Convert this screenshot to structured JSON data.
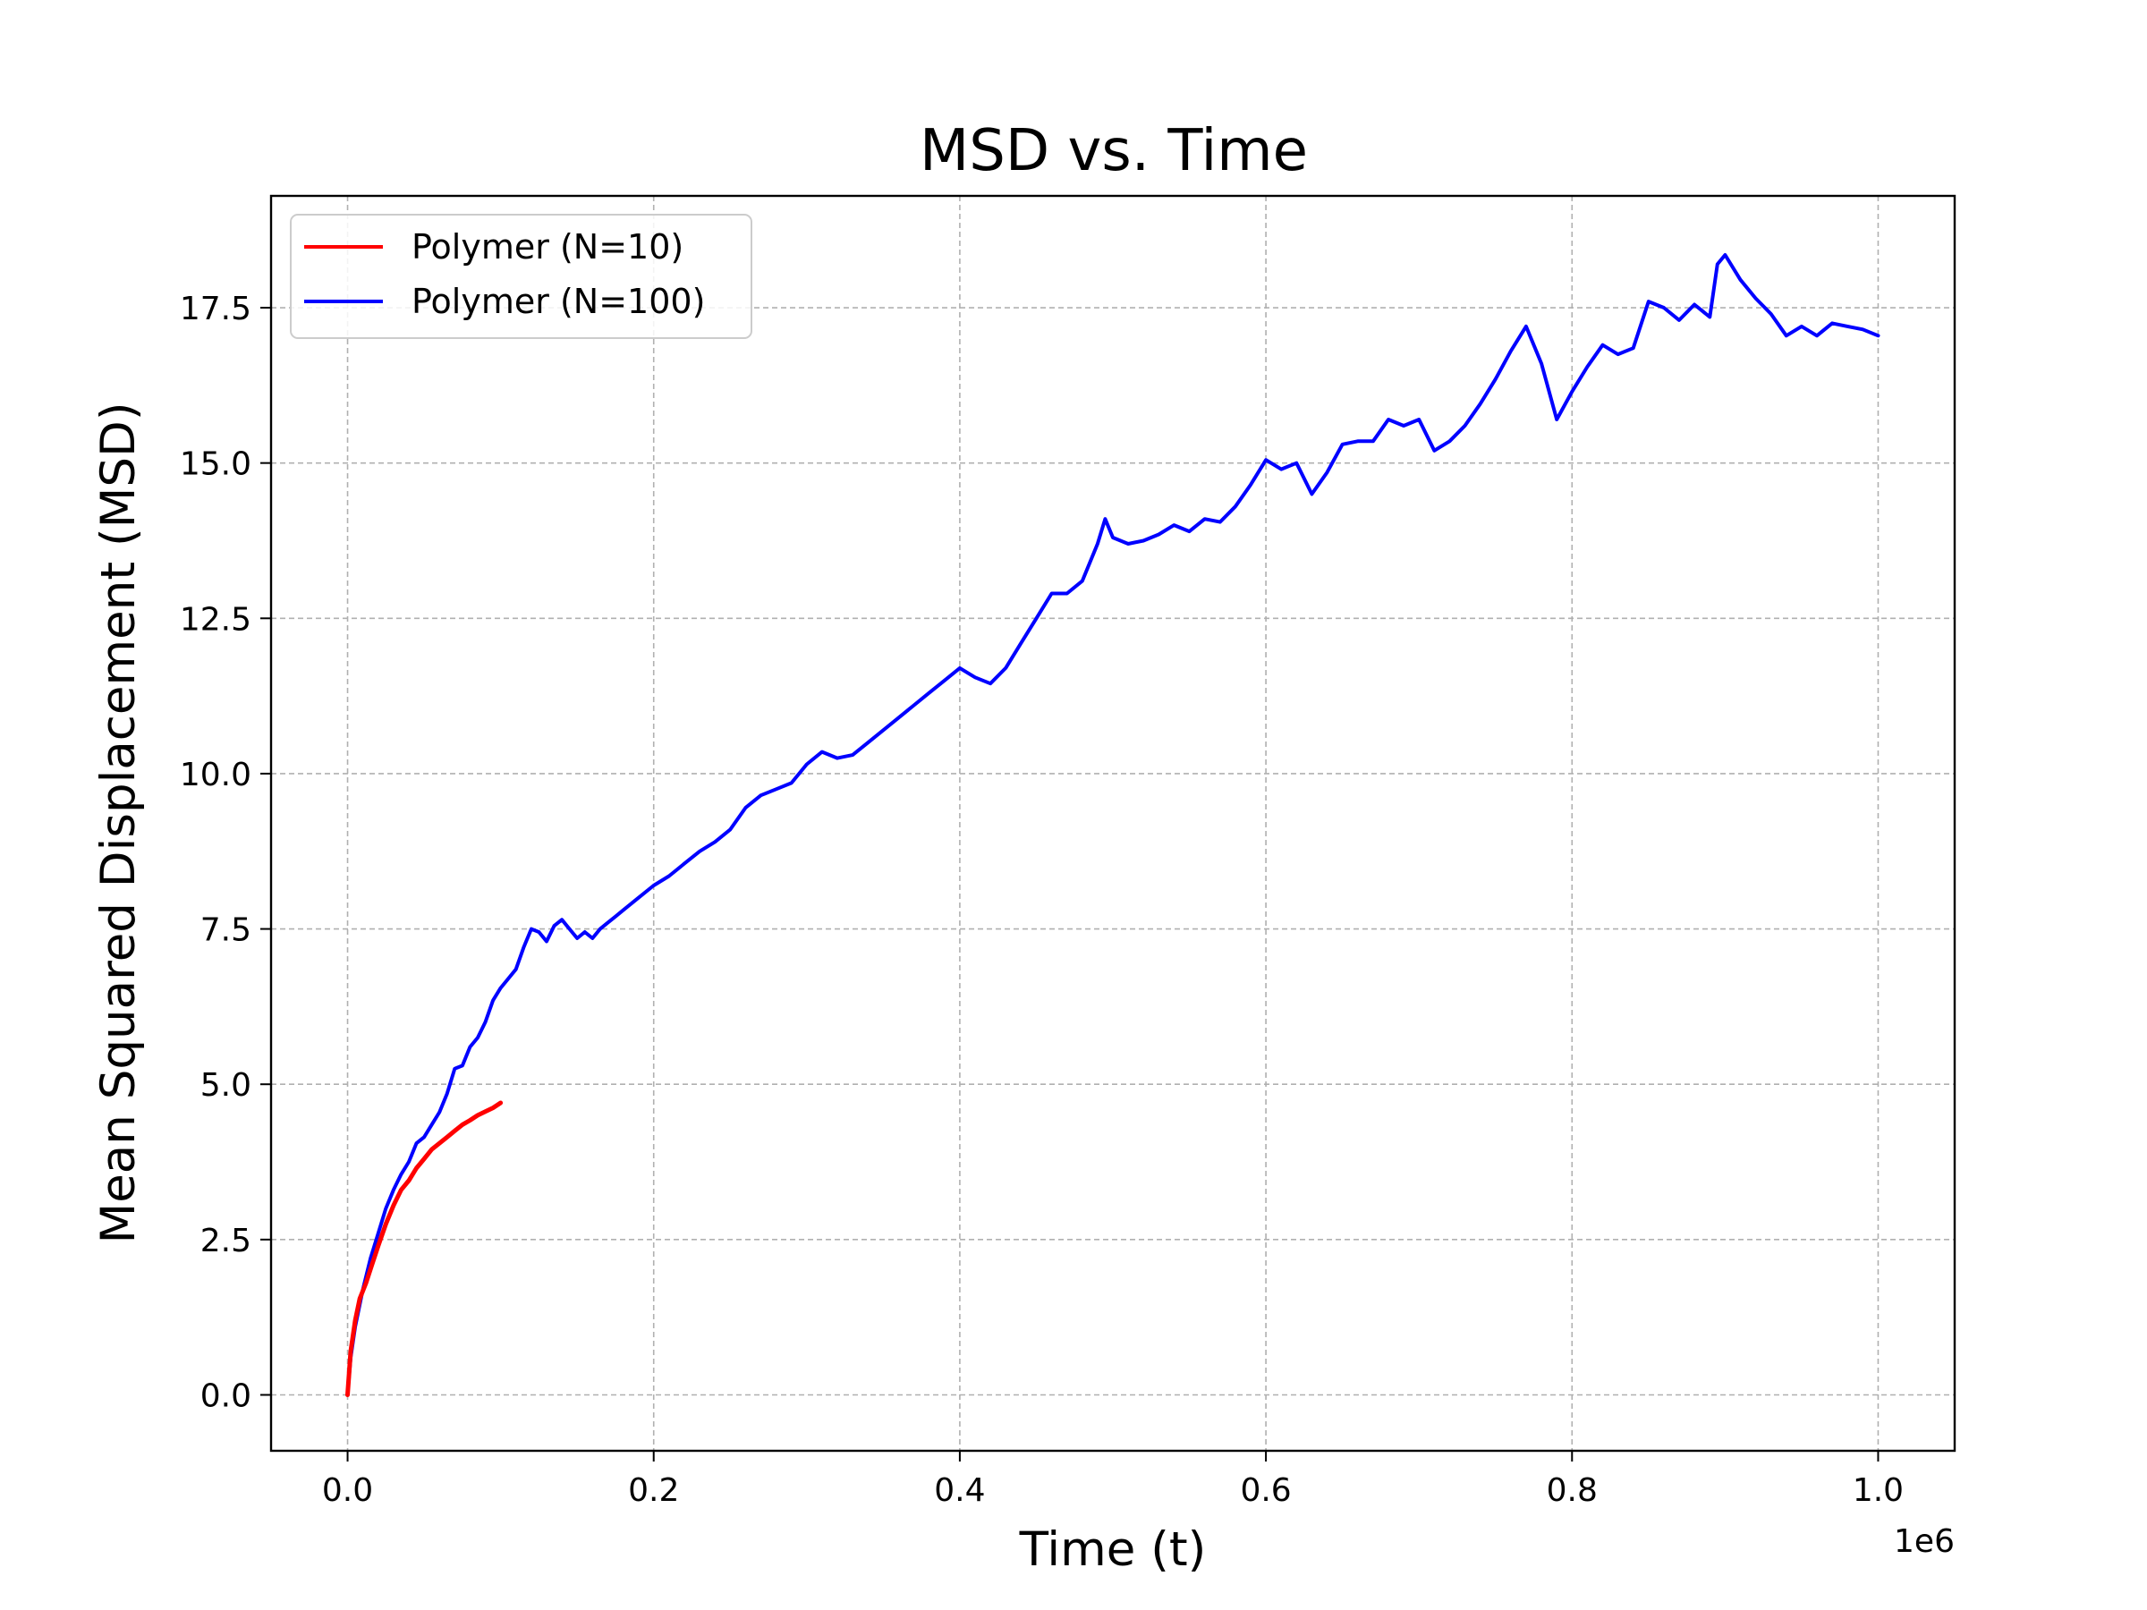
{
  "chart_data": {
    "type": "line",
    "title": "MSD vs. Time",
    "xlabel": "Time (t)",
    "ylabel": "Mean Squared Displacement (MSD)",
    "x_offset_label": "1e6",
    "xlim": [
      -0.05,
      1.05
    ],
    "ylim": [
      -0.9,
      19.3
    ],
    "x_ticks": [
      0.0,
      0.2,
      0.4,
      0.6,
      0.8,
      1.0
    ],
    "x_tick_labels": [
      "0.0",
      "0.2",
      "0.4",
      "0.6",
      "0.8",
      "1.0"
    ],
    "y_ticks": [
      0.0,
      2.5,
      5.0,
      7.5,
      10.0,
      12.5,
      15.0,
      17.5
    ],
    "y_tick_labels": [
      "0.0",
      "2.5",
      "5.0",
      "7.5",
      "10.0",
      "12.5",
      "15.0",
      "17.5"
    ],
    "grid": true,
    "legend_position": "top-left",
    "series": [
      {
        "name": "Polymer (N=10)",
        "color": "#ff0000",
        "x": [
          0.0,
          0.002,
          0.005,
          0.008,
          0.012,
          0.016,
          0.02,
          0.025,
          0.03,
          0.035,
          0.04,
          0.045,
          0.05,
          0.055,
          0.06,
          0.065,
          0.07,
          0.075,
          0.08,
          0.085,
          0.09,
          0.095,
          0.1
        ],
        "y": [
          0.0,
          0.7,
          1.2,
          1.55,
          1.8,
          2.1,
          2.4,
          2.75,
          3.05,
          3.3,
          3.45,
          3.65,
          3.8,
          3.95,
          4.05,
          4.15,
          4.25,
          4.35,
          4.42,
          4.5,
          4.56,
          4.62,
          4.7
        ]
      },
      {
        "name": "Polymer (N=100)",
        "color": "#0000ff",
        "x": [
          0.0,
          0.002,
          0.005,
          0.01,
          0.015,
          0.02,
          0.025,
          0.03,
          0.035,
          0.04,
          0.045,
          0.05,
          0.055,
          0.06,
          0.065,
          0.07,
          0.075,
          0.08,
          0.085,
          0.09,
          0.095,
          0.1,
          0.105,
          0.11,
          0.115,
          0.12,
          0.125,
          0.13,
          0.135,
          0.14,
          0.145,
          0.15,
          0.155,
          0.16,
          0.165,
          0.17,
          0.175,
          0.18,
          0.19,
          0.2,
          0.21,
          0.22,
          0.23,
          0.24,
          0.25,
          0.26,
          0.27,
          0.28,
          0.29,
          0.3,
          0.31,
          0.32,
          0.33,
          0.34,
          0.35,
          0.36,
          0.37,
          0.38,
          0.39,
          0.4,
          0.41,
          0.42,
          0.43,
          0.44,
          0.45,
          0.46,
          0.47,
          0.48,
          0.49,
          0.495,
          0.5,
          0.51,
          0.52,
          0.53,
          0.54,
          0.55,
          0.56,
          0.57,
          0.58,
          0.59,
          0.6,
          0.61,
          0.62,
          0.63,
          0.64,
          0.65,
          0.66,
          0.67,
          0.68,
          0.69,
          0.7,
          0.71,
          0.72,
          0.73,
          0.74,
          0.75,
          0.76,
          0.77,
          0.78,
          0.79,
          0.8,
          0.81,
          0.82,
          0.83,
          0.84,
          0.85,
          0.86,
          0.87,
          0.88,
          0.89,
          0.895,
          0.9,
          0.91,
          0.92,
          0.93,
          0.94,
          0.95,
          0.96,
          0.97,
          0.98,
          0.99,
          1.0
        ],
        "y": [
          0.0,
          0.6,
          1.1,
          1.7,
          2.2,
          2.6,
          3.0,
          3.3,
          3.55,
          3.75,
          4.05,
          4.15,
          4.35,
          4.55,
          4.85,
          5.25,
          5.3,
          5.6,
          5.75,
          6.0,
          6.35,
          6.55,
          6.7,
          6.85,
          7.2,
          7.5,
          7.45,
          7.3,
          7.55,
          7.65,
          7.5,
          7.35,
          7.45,
          7.35,
          7.5,
          7.6,
          7.7,
          7.8,
          8.0,
          8.2,
          8.35,
          8.55,
          8.75,
          8.9,
          9.1,
          9.45,
          9.65,
          9.75,
          9.85,
          10.15,
          10.35,
          10.25,
          10.3,
          10.5,
          10.7,
          10.9,
          11.1,
          11.3,
          11.5,
          11.7,
          11.55,
          11.45,
          11.7,
          12.1,
          12.5,
          12.9,
          12.9,
          13.1,
          13.7,
          14.1,
          13.8,
          13.7,
          13.75,
          13.85,
          14.0,
          13.9,
          14.1,
          14.05,
          14.3,
          14.65,
          15.05,
          14.9,
          15.0,
          14.5,
          14.85,
          15.3,
          15.35,
          15.35,
          15.7,
          15.6,
          15.7,
          15.2,
          15.35,
          15.6,
          15.95,
          16.35,
          16.8,
          17.2,
          16.6,
          15.7,
          16.15,
          16.55,
          16.9,
          16.75,
          16.85,
          17.6,
          17.5,
          17.3,
          17.55,
          17.35,
          18.2,
          18.35,
          17.95,
          17.65,
          17.4,
          17.05,
          17.2,
          17.05,
          17.25,
          17.2,
          17.15,
          17.05
        ]
      }
    ]
  }
}
